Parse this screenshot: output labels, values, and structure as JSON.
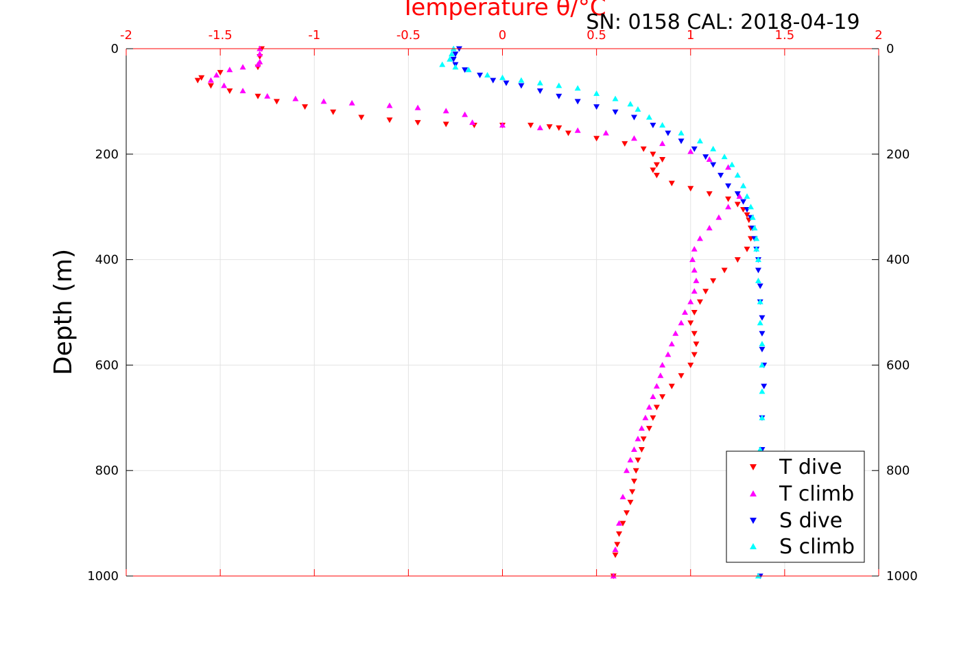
{
  "chart_data": {
    "type": "scatter",
    "title": "SN: 0158  CAL: 2018-04-19",
    "xlabel": "Temperature θ/°C",
    "ylabel": "Depth (m)",
    "xlim": [
      -2,
      2
    ],
    "ylim": [
      0,
      1000
    ],
    "y_reversed": true,
    "x_axis_position": "top",
    "grid": true,
    "legend_position": "bottom-right",
    "xticks": [
      "-2",
      "-1.5",
      "-1",
      "-0.5",
      "0",
      "0.5",
      "1",
      "1.5",
      "2"
    ],
    "yticks": [
      "0",
      "200",
      "400",
      "600",
      "800",
      "1000"
    ],
    "colors": {
      "axis_top": "#ff0000",
      "axis_side": "#000000",
      "grid": "#e3e3e3"
    },
    "series": [
      {
        "name": "T dive",
        "color": "#ff0000",
        "marker": "triangle-down",
        "x": [
          -1.28,
          -1.29,
          -1.3,
          -1.5,
          -1.6,
          -1.62,
          -1.55,
          -1.45,
          -1.3,
          -1.2,
          -1.05,
          -0.9,
          -0.75,
          -0.6,
          -0.45,
          -0.3,
          -0.15,
          0.0,
          0.15,
          0.25,
          0.3,
          0.35,
          0.5,
          0.65,
          0.75,
          0.8,
          0.85,
          0.82,
          0.8,
          0.82,
          0.9,
          1.0,
          1.1,
          1.2,
          1.25,
          1.28,
          1.3,
          1.31,
          1.32,
          1.32,
          1.3,
          1.25,
          1.18,
          1.12,
          1.08,
          1.05,
          1.02,
          1.0,
          1.02,
          1.03,
          1.02,
          1.0,
          0.95,
          0.9,
          0.85,
          0.82,
          0.8,
          0.78,
          0.75,
          0.74,
          0.72,
          0.71,
          0.7,
          0.69,
          0.68,
          0.66,
          0.64,
          0.62,
          0.61,
          0.6,
          0.59
        ],
        "y": [
          0,
          15,
          35,
          45,
          55,
          60,
          70,
          80,
          90,
          100,
          110,
          120,
          130,
          135,
          140,
          143,
          145,
          145,
          145,
          148,
          150,
          160,
          170,
          180,
          190,
          200,
          210,
          220,
          230,
          240,
          255,
          265,
          275,
          285,
          295,
          305,
          315,
          325,
          340,
          360,
          380,
          400,
          420,
          440,
          460,
          480,
          500,
          520,
          540,
          560,
          580,
          600,
          620,
          640,
          660,
          680,
          700,
          720,
          740,
          760,
          780,
          800,
          820,
          840,
          860,
          880,
          900,
          920,
          940,
          960,
          1000
        ]
      },
      {
        "name": "T climb",
        "color": "#ff00ff",
        "marker": "triangle-up",
        "x": [
          -1.29,
          -1.29,
          -1.29,
          -1.3,
          -1.38,
          -1.45,
          -1.52,
          -1.55,
          -1.48,
          -1.38,
          -1.25,
          -1.1,
          -0.95,
          -0.8,
          -0.6,
          -0.45,
          -0.3,
          -0.2,
          -0.16,
          0.0,
          0.2,
          0.4,
          0.55,
          0.7,
          0.85,
          1.0,
          1.1,
          1.2,
          1.25,
          1.28,
          1.26,
          1.2,
          1.15,
          1.1,
          1.05,
          1.02,
          1.01,
          1.02,
          1.03,
          1.02,
          1.0,
          0.97,
          0.95,
          0.92,
          0.9,
          0.88,
          0.85,
          0.84,
          0.82,
          0.8,
          0.78,
          0.76,
          0.74,
          0.72,
          0.7,
          0.68,
          0.66,
          0.64,
          0.62,
          0.6,
          0.59
        ],
        "y": [
          0,
          10,
          25,
          30,
          35,
          40,
          50,
          60,
          70,
          80,
          90,
          95,
          100,
          103,
          108,
          112,
          118,
          125,
          140,
          145,
          150,
          155,
          160,
          170,
          180,
          195,
          210,
          225,
          240,
          260,
          280,
          300,
          320,
          340,
          360,
          380,
          400,
          420,
          440,
          460,
          480,
          500,
          520,
          540,
          560,
          580,
          600,
          620,
          640,
          660,
          680,
          700,
          720,
          740,
          760,
          780,
          800,
          850,
          900,
          950,
          1000
        ]
      },
      {
        "name": "S dive",
        "color": "#0000ff",
        "marker": "triangle-down",
        "x": [
          -0.23,
          -0.25,
          -0.26,
          -0.25,
          -0.2,
          -0.12,
          -0.05,
          0.02,
          0.1,
          0.2,
          0.3,
          0.4,
          0.5,
          0.6,
          0.7,
          0.8,
          0.88,
          0.95,
          1.02,
          1.08,
          1.12,
          1.16,
          1.2,
          1.25,
          1.28,
          1.3,
          1.32,
          1.33,
          1.34,
          1.35,
          1.36,
          1.36,
          1.37,
          1.37,
          1.38,
          1.38,
          1.38,
          1.39,
          1.39,
          1.38,
          1.38,
          1.37,
          1.37,
          1.37,
          1.37
        ],
        "y": [
          0,
          10,
          20,
          30,
          40,
          50,
          60,
          65,
          70,
          80,
          90,
          100,
          110,
          120,
          130,
          145,
          160,
          175,
          190,
          205,
          220,
          240,
          260,
          275,
          290,
          305,
          320,
          340,
          360,
          380,
          400,
          420,
          450,
          480,
          510,
          540,
          570,
          600,
          640,
          700,
          760,
          820,
          880,
          940,
          1000
        ]
      },
      {
        "name": "S climb",
        "color": "#00ffff",
        "marker": "triangle-up",
        "x": [
          -0.26,
          -0.27,
          -0.28,
          -0.32,
          -0.25,
          -0.18,
          -0.08,
          0.0,
          0.1,
          0.2,
          0.3,
          0.4,
          0.5,
          0.6,
          0.68,
          0.72,
          0.78,
          0.85,
          0.95,
          1.05,
          1.12,
          1.18,
          1.22,
          1.25,
          1.28,
          1.3,
          1.32,
          1.33,
          1.34,
          1.35,
          1.35,
          1.36,
          1.36,
          1.37,
          1.37,
          1.38,
          1.38,
          1.38,
          1.38,
          1.37,
          1.37,
          1.37,
          1.36
        ],
        "y": [
          0,
          10,
          20,
          30,
          35,
          40,
          50,
          55,
          60,
          65,
          70,
          75,
          85,
          95,
          105,
          115,
          130,
          145,
          160,
          175,
          190,
          205,
          220,
          240,
          260,
          280,
          300,
          320,
          340,
          360,
          380,
          400,
          440,
          480,
          520,
          560,
          600,
          650,
          700,
          760,
          820,
          900,
          1000
        ]
      }
    ]
  }
}
